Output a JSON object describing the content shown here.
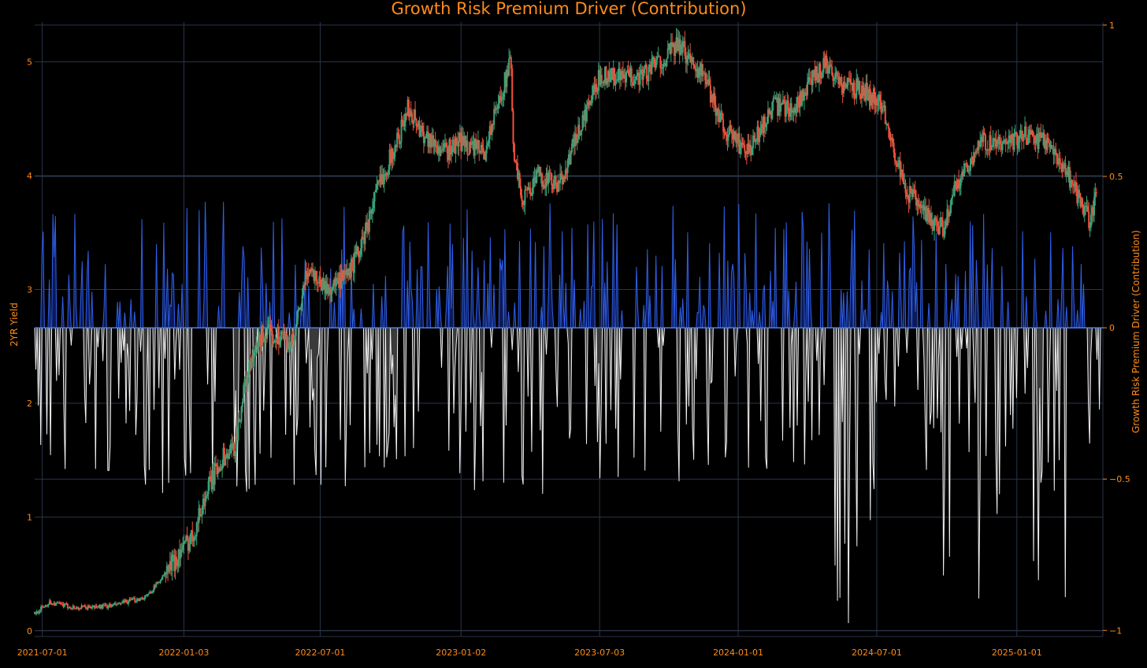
{
  "colors": {
    "background": "#000000",
    "grid": "#2a3548",
    "text": "#ff8c1a",
    "candle_up": "#3aa37a",
    "candle_down": "#f0503c",
    "positive_line": "#2f5fe6",
    "positive_fill": "#0c1a5a",
    "negative_line": "#f2f2f2",
    "negative_fill": "#3a3a3a",
    "zero_line": "#4a7ee0"
  },
  "chart_data": {
    "type": "line",
    "title": "Growth Risk Premium Driver (Contribution)",
    "x_ticks": [
      "2021-07-01",
      "2022-01-03",
      "2022-07-01",
      "2023-01-02",
      "2023-07-03",
      "2024-01-01",
      "2024-07-01",
      "2025-01-01"
    ],
    "x_range": [
      "2021-06-21",
      "2025-04-24"
    ],
    "grid": true,
    "y_left": {
      "label": "2YR Yield",
      "range": [
        -0.05,
        5.35
      ],
      "ticks": [
        "0",
        "1",
        "2",
        "3",
        "4",
        "5"
      ]
    },
    "y_right": {
      "label": "Growth Risk Premium Driver (Contribution)",
      "range": [
        -1.02,
        1.01
      ],
      "ticks": [
        "1",
        "0.5",
        "0",
        "−0.5",
        "−1"
      ]
    },
    "series": [
      {
        "kind": "candlestick",
        "axis": "left",
        "description_points": [
          [
            "2021-06-21",
            0.15
          ],
          [
            "2021-07-10",
            0.25
          ],
          [
            "2021-08-15",
            0.2
          ],
          [
            "2021-10-01",
            0.22
          ],
          [
            "2021-11-15",
            0.3
          ],
          [
            "2021-12-15",
            0.55
          ],
          [
            "2022-01-15",
            0.85
          ],
          [
            "2022-02-01",
            1.2
          ],
          [
            "2022-02-20",
            1.5
          ],
          [
            "2022-03-10",
            1.6
          ],
          [
            "2022-03-25",
            2.2
          ],
          [
            "2022-04-15",
            2.6
          ],
          [
            "2022-05-10",
            2.6
          ],
          [
            "2022-05-26",
            2.5
          ],
          [
            "2022-06-15",
            3.2
          ],
          [
            "2022-07-10",
            3.0
          ],
          [
            "2022-08-05",
            3.1
          ],
          [
            "2022-08-25",
            3.4
          ],
          [
            "2022-09-15",
            3.9
          ],
          [
            "2022-10-10",
            4.3
          ],
          [
            "2022-10-25",
            4.6
          ],
          [
            "2022-11-10",
            4.4
          ],
          [
            "2022-12-10",
            4.2
          ],
          [
            "2023-01-02",
            4.3
          ],
          [
            "2023-02-01",
            4.2
          ],
          [
            "2023-03-08",
            5.0
          ],
          [
            "2023-03-13",
            4.1
          ],
          [
            "2023-03-24",
            3.8
          ],
          [
            "2023-04-15",
            4.0
          ],
          [
            "2023-05-10",
            3.9
          ],
          [
            "2023-06-01",
            4.3
          ],
          [
            "2023-07-05",
            4.9
          ],
          [
            "2023-08-01",
            4.85
          ],
          [
            "2023-09-01",
            4.9
          ],
          [
            "2023-10-15",
            5.15
          ],
          [
            "2023-11-15",
            4.9
          ],
          [
            "2023-12-15",
            4.4
          ],
          [
            "2024-01-15",
            4.2
          ],
          [
            "2024-02-15",
            4.6
          ],
          [
            "2024-03-15",
            4.6
          ],
          [
            "2024-04-25",
            5.0
          ],
          [
            "2024-05-15",
            4.8
          ],
          [
            "2024-06-15",
            4.75
          ],
          [
            "2024-07-10",
            4.6
          ],
          [
            "2024-08-05",
            3.9
          ],
          [
            "2024-09-10",
            3.6
          ],
          [
            "2024-09-28",
            3.55
          ],
          [
            "2024-10-15",
            3.95
          ],
          [
            "2024-11-15",
            4.3
          ],
          [
            "2024-12-15",
            4.25
          ],
          [
            "2025-01-10",
            4.35
          ],
          [
            "2025-02-10",
            4.3
          ],
          [
            "2025-03-10",
            4.0
          ],
          [
            "2025-04-07",
            3.6
          ],
          [
            "2025-04-16",
            3.85
          ]
        ]
      },
      {
        "kind": "contribution",
        "axis": "right",
        "name": ""
      }
    ]
  }
}
